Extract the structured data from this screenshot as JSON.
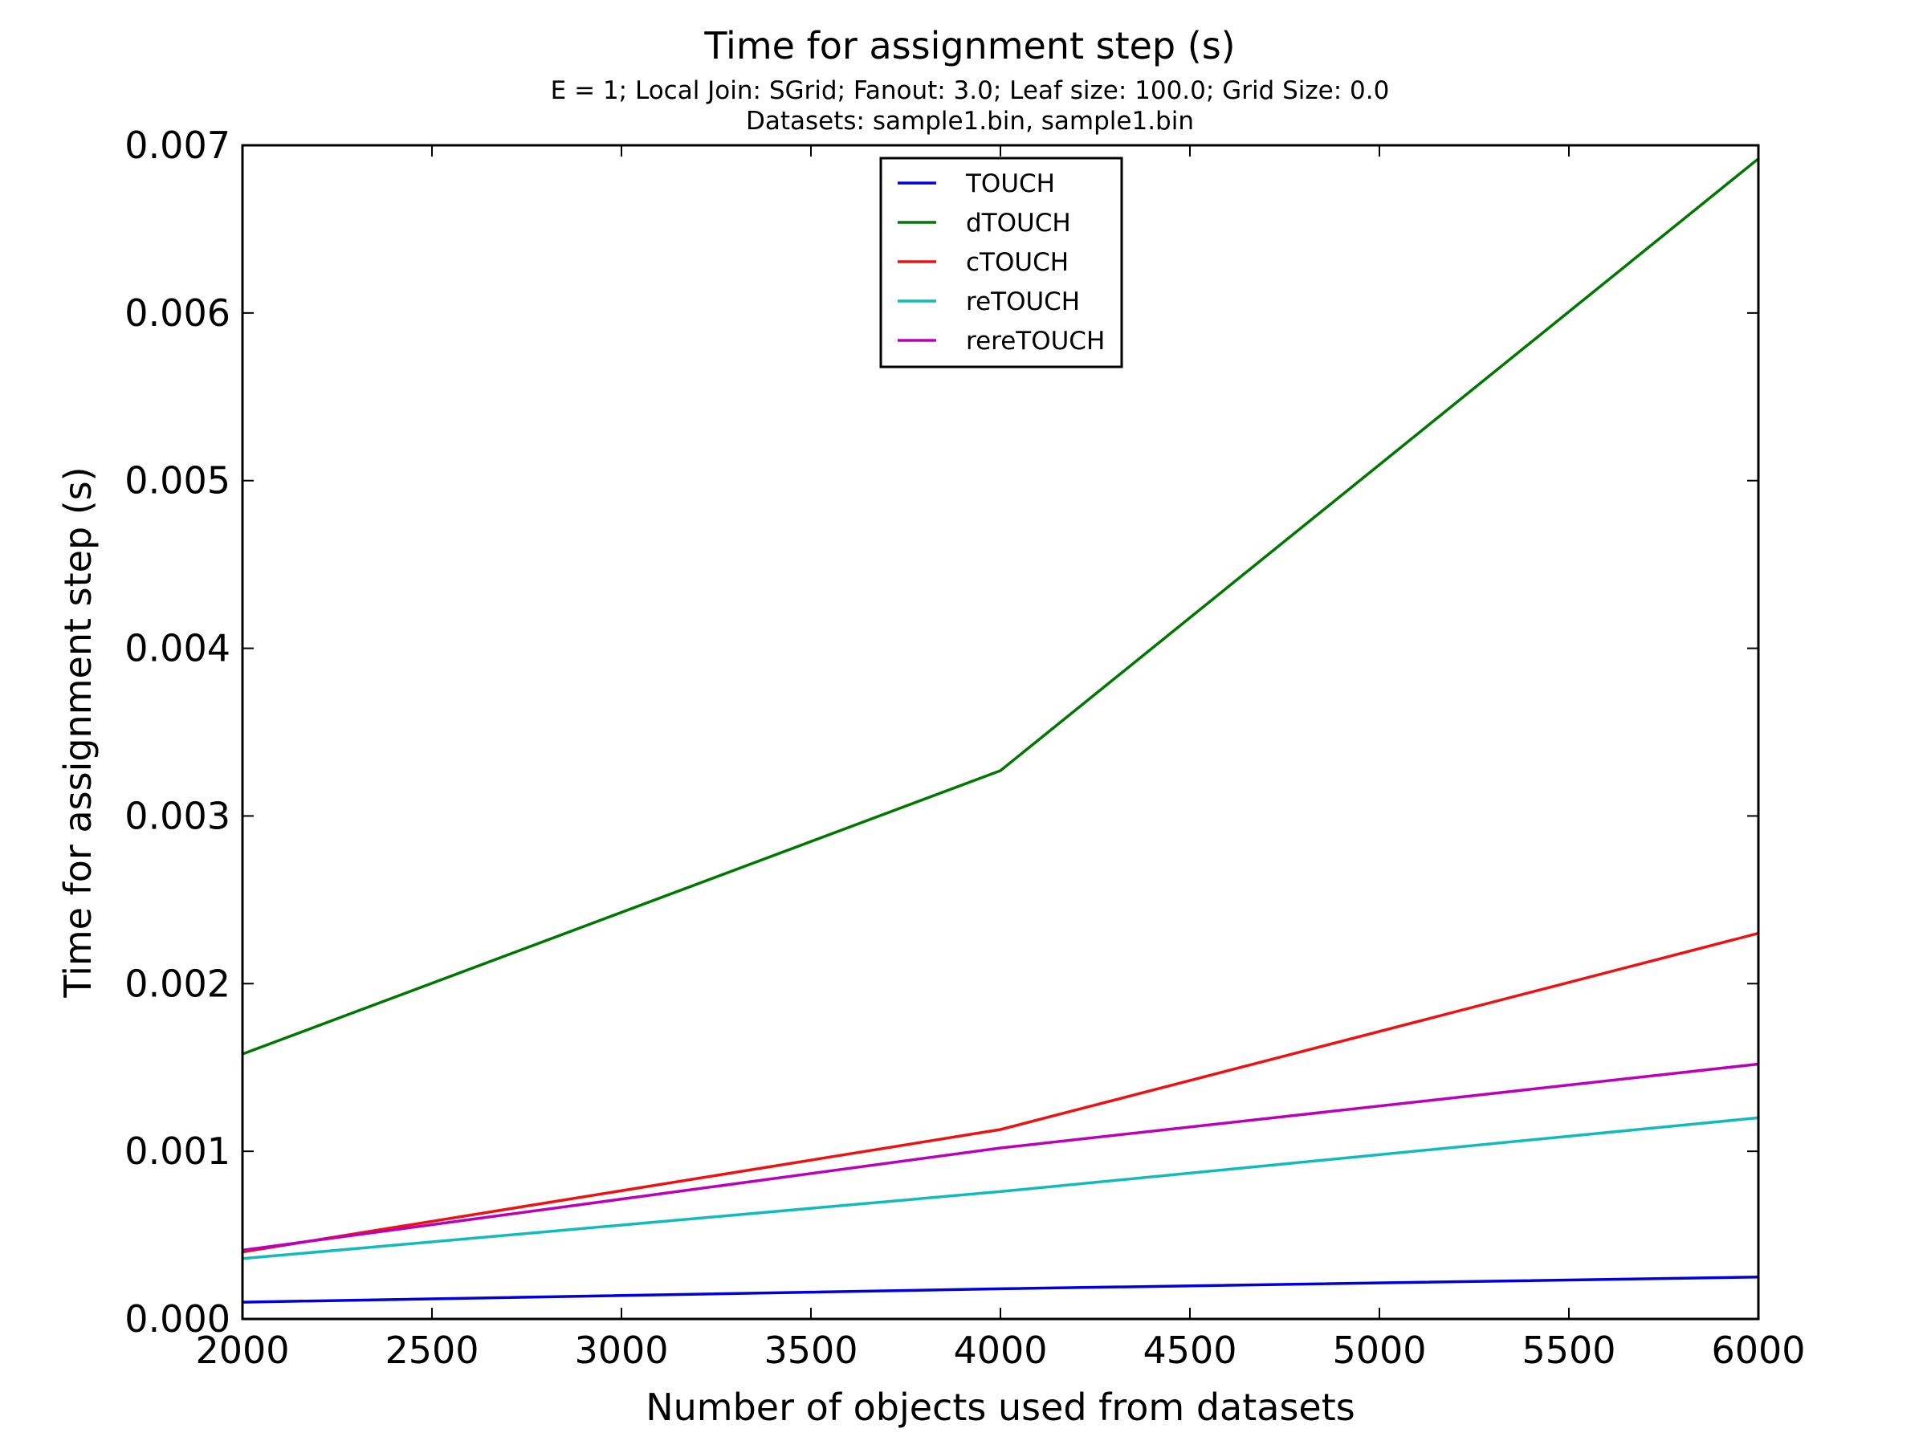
{
  "chart_data": {
    "type": "line",
    "title": "Time for assignment step (s)",
    "subtitle_lines": [
      "E = 1; Local Join: SGrid; Fanout: 3.0; Leaf size: 100.0; Grid Size: 0.0",
      "Datasets: sample1.bin, sample1.bin"
    ],
    "xlabel": "Number of objects used from datasets",
    "ylabel": "Time for assignment step (s)",
    "xlim": [
      2000,
      6000
    ],
    "ylim": [
      0,
      0.007
    ],
    "x_ticks": [
      "2000",
      "2500",
      "3000",
      "3500",
      "4000",
      "4500",
      "5000",
      "5500",
      "6000"
    ],
    "y_ticks": [
      "0.000",
      "0.001",
      "0.002",
      "0.003",
      "0.004",
      "0.005",
      "0.006",
      "0.007"
    ],
    "x": [
      2000,
      4000,
      6000
    ],
    "series": [
      {
        "name": "TOUCH",
        "color": "#0000dd",
        "values": [
          0.0001,
          0.00018,
          0.00025
        ]
      },
      {
        "name": "dTOUCH",
        "color": "#007700",
        "values": [
          0.00158,
          0.00327,
          0.00692
        ]
      },
      {
        "name": "cTOUCH",
        "color": "#ee1111",
        "values": [
          0.0004,
          0.00113,
          0.0023
        ]
      },
      {
        "name": "reTOUCH",
        "color": "#11bbbb",
        "values": [
          0.00036,
          0.00076,
          0.0012
        ]
      },
      {
        "name": "rereTOUCH",
        "color": "#bb00bb",
        "values": [
          0.00041,
          0.00102,
          0.00152
        ]
      }
    ],
    "grid": false,
    "legend_position": "top-center"
  }
}
